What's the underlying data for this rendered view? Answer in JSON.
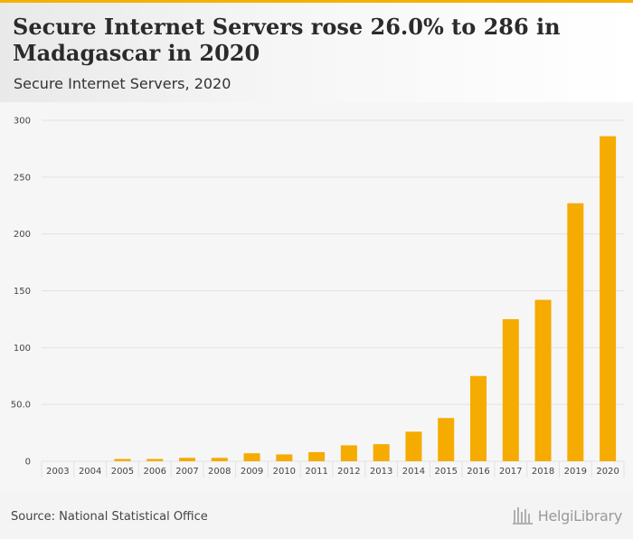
{
  "header": {
    "title": "Secure Internet Servers rose 26.0% to 286 in Madagascar in 2020",
    "subtitle": "Secure Internet Servers, 2020"
  },
  "footer": {
    "source": "Source: National Statistical Office",
    "brand": "HelgiLibrary"
  },
  "colors": {
    "bar": "#f5ab00",
    "accent": "#f5b000",
    "grid": "#e2e2e2"
  },
  "chart_data": {
    "type": "bar",
    "title": "Secure Internet Servers, 2020",
    "xlabel": "",
    "ylabel": "",
    "ylim": [
      0,
      300
    ],
    "yticks": [
      0,
      50,
      100,
      150,
      200,
      250,
      300
    ],
    "ytick_labels": [
      "0",
      "50.0",
      "100",
      "150",
      "200",
      "250",
      "300"
    ],
    "grid": true,
    "categories": [
      "2003",
      "2004",
      "2005",
      "2006",
      "2007",
      "2008",
      "2009",
      "2010",
      "2011",
      "2012",
      "2013",
      "2014",
      "2015",
      "2016",
      "2017",
      "2018",
      "2019",
      "2020"
    ],
    "values": [
      0,
      0,
      2,
      2,
      3,
      3,
      7,
      6,
      8,
      14,
      15,
      26,
      38,
      75,
      125,
      142,
      227,
      286
    ]
  }
}
